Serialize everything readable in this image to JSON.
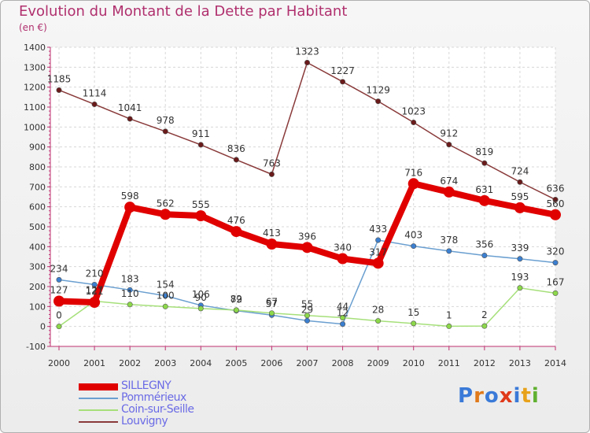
{
  "title": "Evolution du Montant de la Dette par Habitant",
  "unit_label": "(en €)",
  "brand": {
    "letters": [
      "P",
      "r",
      "o",
      "x",
      "i",
      "t",
      "i"
    ],
    "colors": [
      "#3a7ad8",
      "#e07a1a",
      "#3a7ad8",
      "#e03a1a",
      "#3a7ad8",
      "#e8a21a",
      "#60b030"
    ]
  },
  "chart_data": {
    "type": "line",
    "x": [
      "2000",
      "2001",
      "2002",
      "2003",
      "2004",
      "2005",
      "2006",
      "2007",
      "2008",
      "2009",
      "2010",
      "2011",
      "2012",
      "2013",
      "2014"
    ],
    "ylim": [
      -100,
      1400
    ],
    "yticks": [
      -100,
      0,
      100,
      200,
      300,
      400,
      500,
      600,
      700,
      800,
      900,
      1000,
      1100,
      1200,
      1300,
      1400
    ],
    "grid": true,
    "legend_position": "bottom-left",
    "series": [
      {
        "name": "SILLEGNY",
        "color": "#e00000",
        "point_color": "#e00000",
        "emphasis": true,
        "values": [
          127,
          121,
          598,
          562,
          555,
          476,
          413,
          396,
          340,
          317,
          716,
          674,
          631,
          595,
          560
        ],
        "labels": [
          "127",
          "121",
          "598",
          "562",
          "555",
          "476",
          "413",
          "396",
          "340",
          "317",
          "716",
          "674",
          "631",
          "595",
          "560"
        ]
      },
      {
        "name": "Pommérieux",
        "color": "#6a9fd0",
        "point_color": "#3b7fd0",
        "values": [
          234,
          210,
          183,
          154,
          106,
          79,
          57,
          29,
          12,
          433,
          403,
          378,
          356,
          339,
          320
        ],
        "labels": [
          "234",
          "210",
          "183",
          "154",
          "106",
          "79",
          "57",
          "29",
          "12",
          "433",
          "403",
          "378",
          "356",
          "339",
          "320"
        ]
      },
      {
        "name": "Coin-sur-Seille",
        "color": "#a6e07a",
        "point_color": "#8cd84a",
        "values": [
          0,
          127,
          110,
          100,
          90,
          82,
          67,
          55,
          44,
          28,
          15,
          1,
          2,
          193,
          167
        ],
        "labels": [
          "0",
          "127",
          "110",
          "100",
          "90",
          "82",
          "67",
          "55",
          "44",
          "28",
          "15",
          "1",
          "2",
          "193",
          "167"
        ]
      },
      {
        "name": "Louvigny",
        "color": "#8a3a3a",
        "point_color": "#6a1a1a",
        "values": [
          1185,
          1114,
          1041,
          978,
          911,
          836,
          763,
          1323,
          1227,
          1129,
          1023,
          912,
          819,
          724,
          636
        ],
        "labels": [
          "1185",
          "1114",
          "1041",
          "978",
          "911",
          "836",
          "763",
          "1323",
          "1227",
          "1129",
          "1023",
          "912",
          "819",
          "724",
          "636"
        ]
      }
    ]
  }
}
